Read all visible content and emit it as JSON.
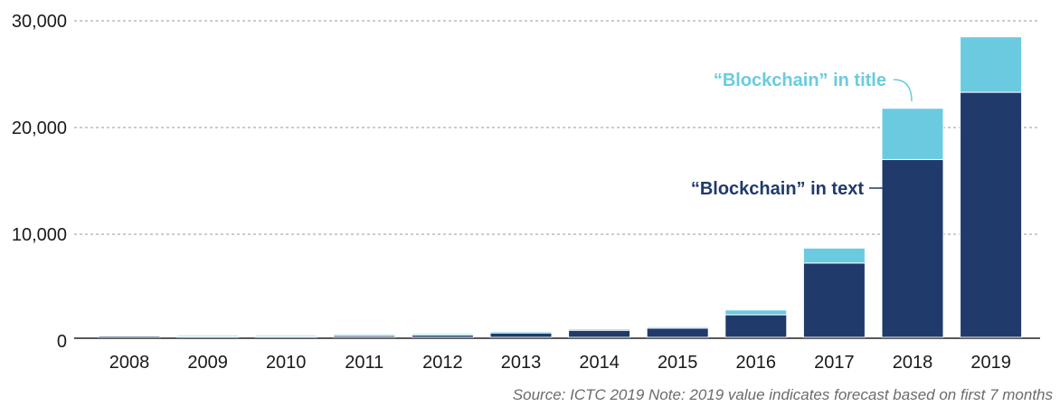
{
  "chart_data": {
    "type": "bar",
    "stacked": true,
    "categories": [
      "2008",
      "2009",
      "2010",
      "2011",
      "2012",
      "2013",
      "2014",
      "2015",
      "2016",
      "2017",
      "2018",
      "2019"
    ],
    "series": [
      {
        "name": "“Blockchain” in text",
        "color": "#1f3a6b",
        "values": [
          200,
          400,
          400,
          500,
          550,
          750,
          1000,
          1200,
          2450,
          7300,
          17000,
          23300
        ]
      },
      {
        "name": "“Blockchain” in title",
        "color": "#6acbe0",
        "values": [
          0,
          50,
          50,
          50,
          50,
          50,
          50,
          50,
          450,
          1400,
          4800,
          5200
        ]
      }
    ],
    "ylim": [
      0,
      30000
    ],
    "yticks": [
      0,
      10000,
      20000,
      30000
    ],
    "ytick_labels": [
      "0",
      "10,000",
      "20,000",
      "30,000"
    ],
    "grid": "horizontal-dashed",
    "annotations": [
      {
        "series": 1,
        "category": "2018"
      },
      {
        "series": 0,
        "category": "2018"
      }
    ]
  },
  "source_note": "Source: ICTC 2019  Note: 2019 value indicates forecast based on first 7 months"
}
